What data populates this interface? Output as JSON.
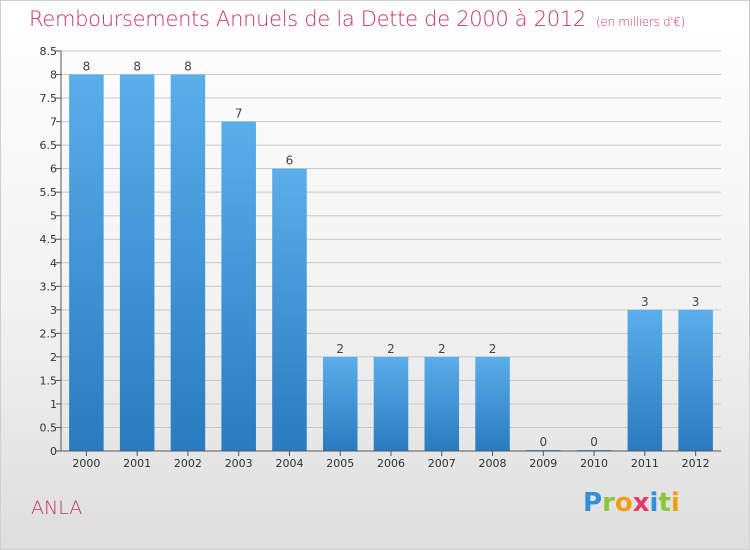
{
  "header": {
    "title": "Remboursements Annuels de la Dette de 2000 à 2012",
    "unit": "(en milliers d'€)"
  },
  "footer": {
    "place": "ANLA",
    "brand_letters": [
      "P",
      "r",
      "o",
      "x",
      "i",
      "t",
      "i"
    ],
    "brand_colors": [
      "#2f8fd8",
      "#8bc63e",
      "#f39c12",
      "#e23a6b",
      "#2f8fd8",
      "#8bc63e",
      "#f39c12"
    ]
  },
  "chart_data": {
    "type": "bar",
    "categories": [
      "2000",
      "2001",
      "2002",
      "2003",
      "2004",
      "2005",
      "2006",
      "2007",
      "2008",
      "2009",
      "2010",
      "2011",
      "2012"
    ],
    "values": [
      8,
      8,
      8,
      7,
      6,
      2,
      2,
      2,
      2,
      0,
      0,
      3,
      3
    ],
    "data_labels": [
      "8",
      "8",
      "8",
      "7",
      "6",
      "2",
      "2",
      "2",
      "2",
      "0",
      "0",
      "3",
      "3"
    ],
    "ylim": [
      0,
      8.5
    ],
    "yticks": [
      "0",
      "0.5",
      "1",
      "1.5",
      "2",
      "2.5",
      "3",
      "3.5",
      "4",
      "4.5",
      "5",
      "5.5",
      "6",
      "6.5",
      "7",
      "7.5",
      "8",
      "8.5"
    ],
    "grid": true,
    "colors": {
      "bar_top": "#5aaeea",
      "bar_bottom": "#2a7bbf",
      "grid": "#c8c8c8",
      "axis": "#555555"
    }
  }
}
